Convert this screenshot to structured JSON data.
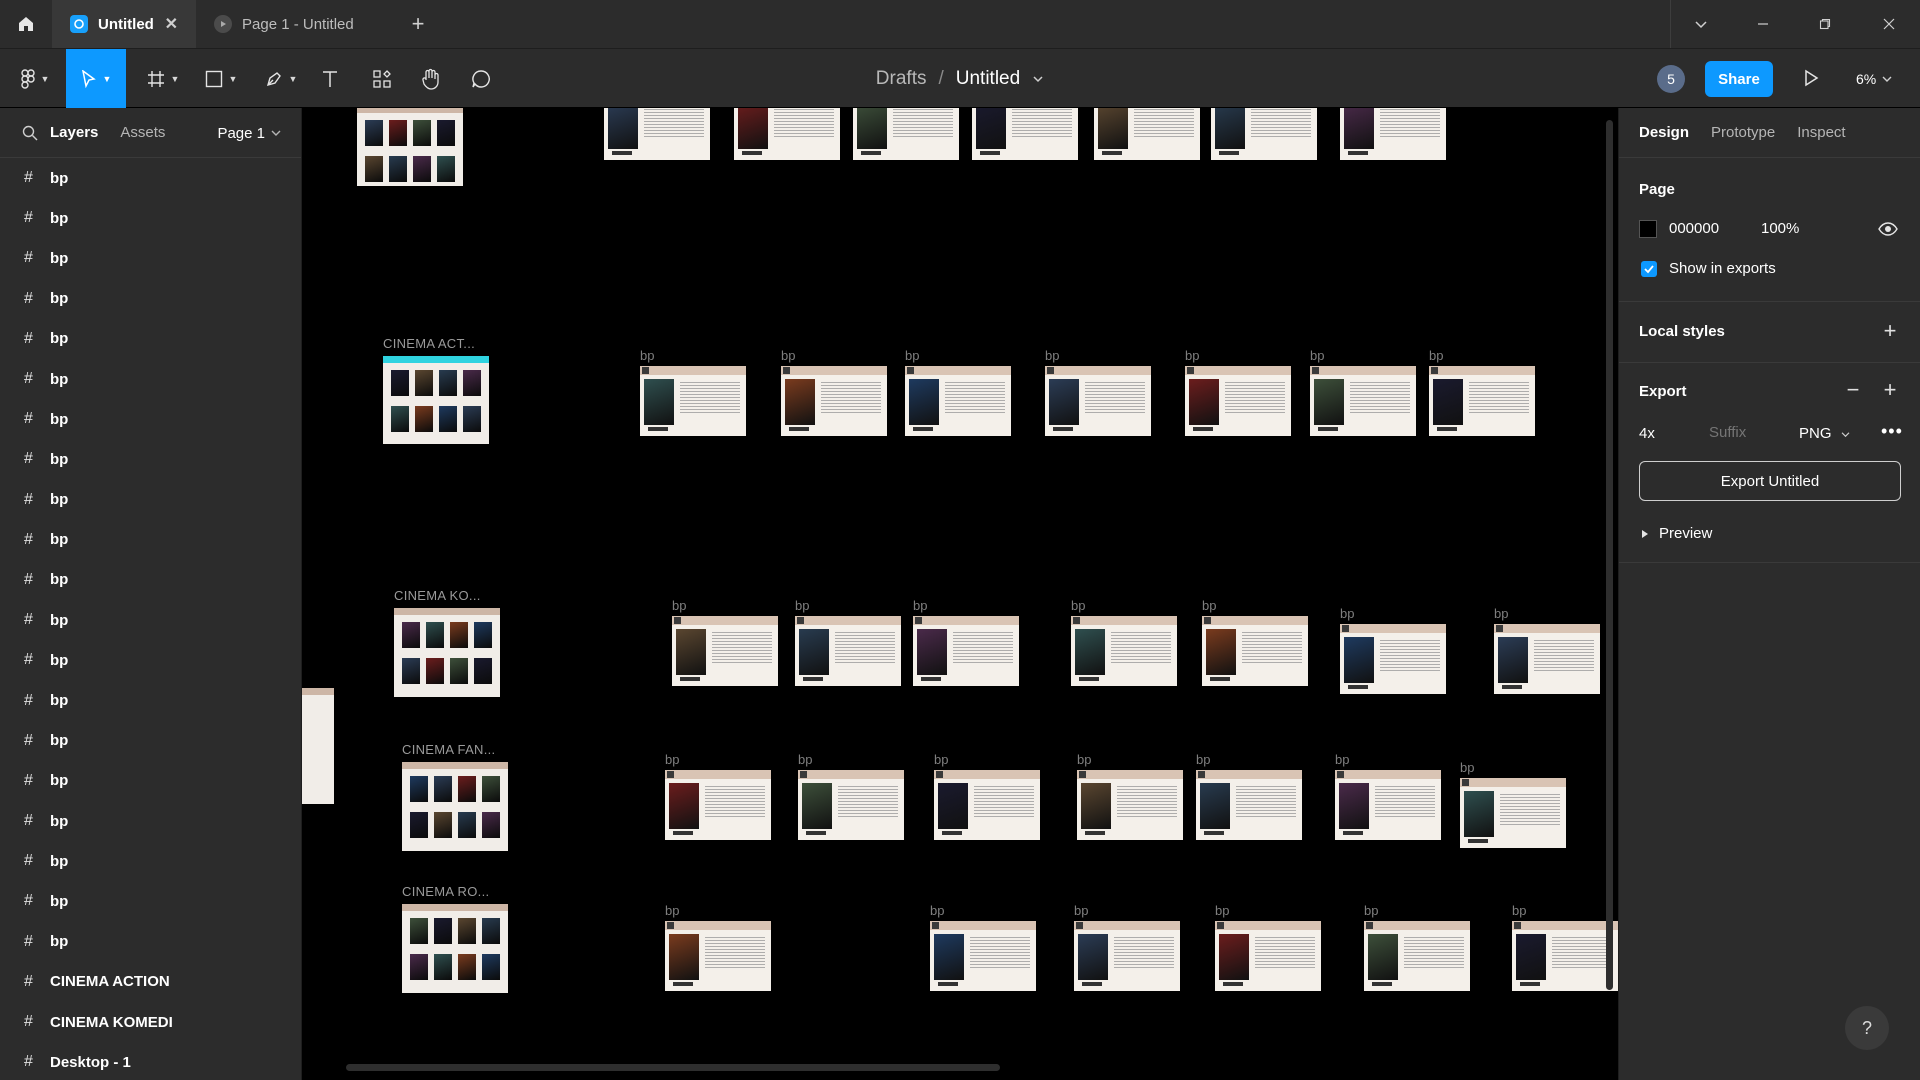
{
  "titlebar": {
    "tabs": [
      {
        "label": "Untitled",
        "active": true
      },
      {
        "label": "Page 1 - Untitled",
        "active": false
      }
    ]
  },
  "toolbar": {
    "breadcrumb": {
      "drafts": "Drafts",
      "separator": "/",
      "file": "Untitled"
    },
    "avatar_count": "5",
    "share_label": "Share",
    "zoom_label": "6%"
  },
  "left_panel": {
    "tabs": {
      "layers": "Layers",
      "assets": "Assets"
    },
    "page_select": "Page 1",
    "layers": [
      "bp",
      "bp",
      "bp",
      "bp",
      "bp",
      "bp",
      "bp",
      "bp",
      "bp",
      "bp",
      "bp",
      "bp",
      "bp",
      "bp",
      "bp",
      "bp",
      "bp",
      "bp",
      "bp",
      "bp",
      "CINEMA ACTION",
      "CINEMA KOMEDI",
      "Desktop - 1"
    ]
  },
  "canvas": {
    "frame_label": "bp",
    "group_labels": [
      "CINEMA ACT...",
      "CINEMA KO...",
      "CINEMA FAN...",
      "CINEMA RO..."
    ]
  },
  "right_panel": {
    "tabs": {
      "design": "Design",
      "prototype": "Prototype",
      "inspect": "Inspect"
    },
    "page_section": {
      "title": "Page",
      "hex": "000000",
      "opacity": "100%",
      "show_in_exports": "Show in exports"
    },
    "local_styles": "Local styles",
    "export": {
      "title": "Export",
      "scale": "4x",
      "suffix_placeholder": "Suffix",
      "format": "PNG",
      "button_label": "Export Untitled",
      "preview_label": "Preview"
    },
    "help_label": "?"
  },
  "colors": {
    "accent": "#0d99ff",
    "panel_bg": "#2c2c2c",
    "canvas_bg": "#000000",
    "frame_header": "#d9c4b4"
  }
}
